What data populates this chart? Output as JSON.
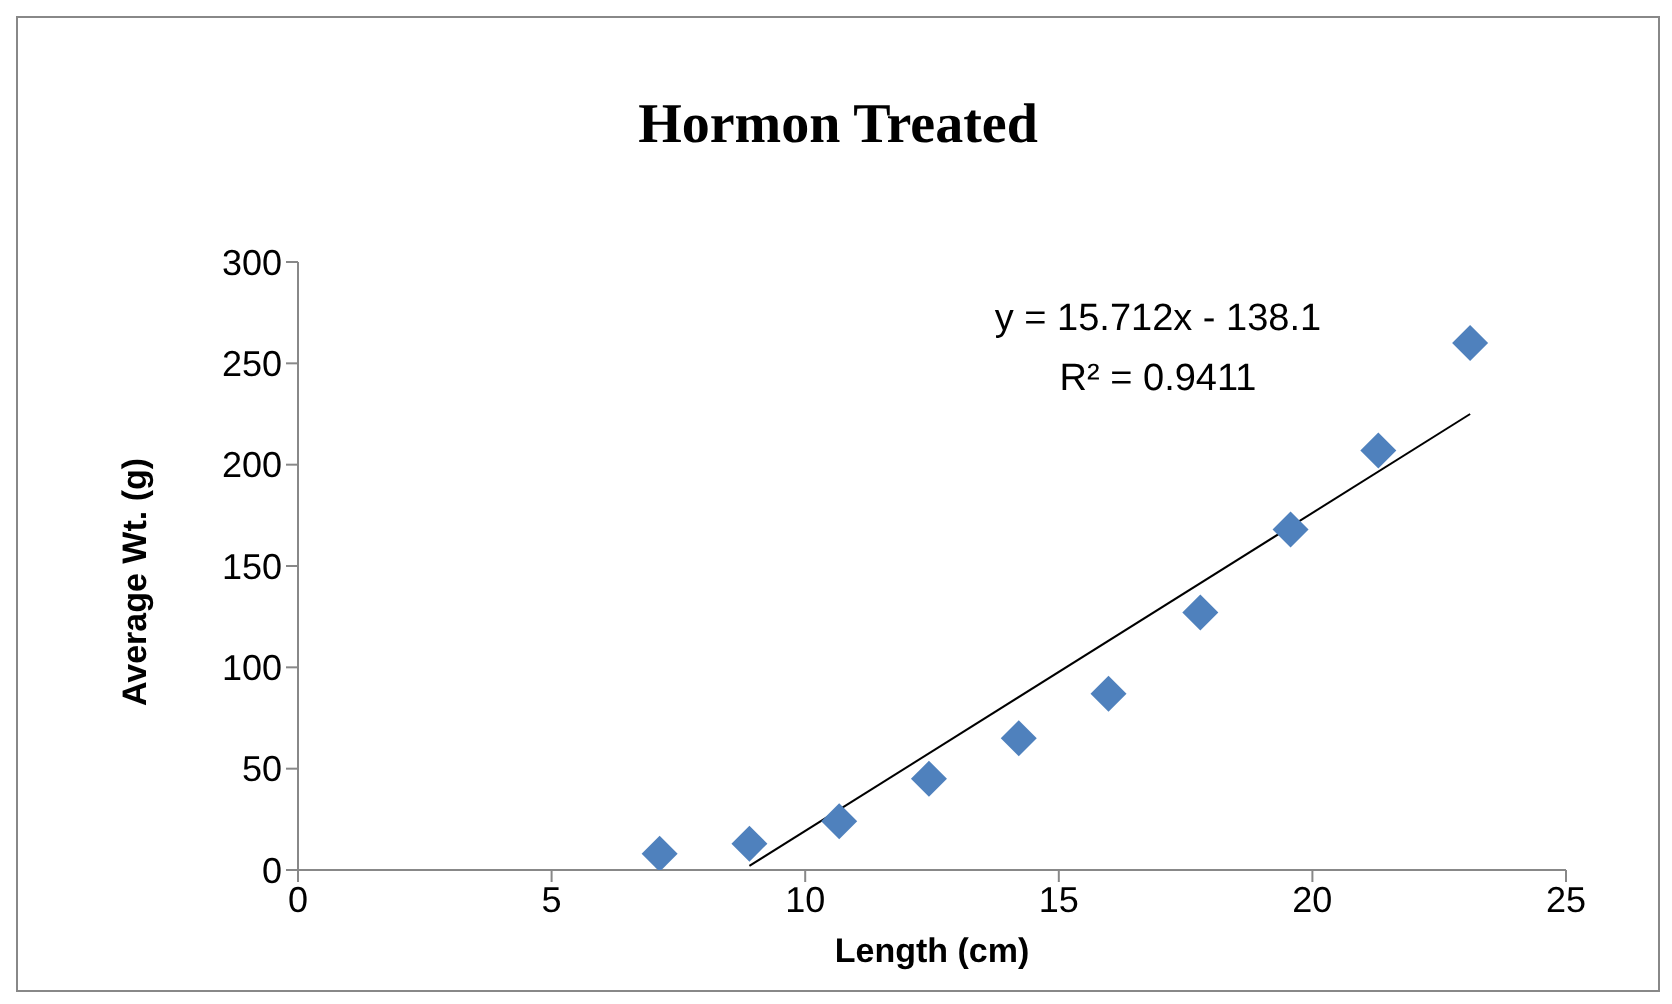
{
  "chart_data": {
    "type": "scatter",
    "title": "Hormon Treated",
    "xlabel": "Length (cm)",
    "ylabel": "Average Wt. (g)",
    "annotations": [
      "y = 15.712x - 138.1",
      "R² = 0.9411"
    ],
    "xlim": [
      0,
      25
    ],
    "xticks": [
      0,
      5,
      10,
      15,
      20,
      25
    ],
    "ylim": [
      0,
      300
    ],
    "yticks": [
      0,
      50,
      100,
      150,
      200,
      250,
      300
    ],
    "grid": false,
    "legend": false,
    "marker": "diamond",
    "series": [
      {
        "type": "scatter",
        "color": "#4f81bd",
        "x": [
          7.13,
          8.9,
          10.67,
          12.44,
          14.21,
          15.98,
          17.79,
          19.57,
          21.3,
          23.11
        ],
        "values": [
          8,
          13,
          24,
          45,
          65,
          87,
          127,
          168,
          207,
          260
        ]
      },
      {
        "type": "line",
        "color": "#000000",
        "x": [
          8.9,
          23.11
        ],
        "values": [
          2,
          225
        ],
        "marker": "none",
        "line_style": "solid"
      }
    ]
  }
}
